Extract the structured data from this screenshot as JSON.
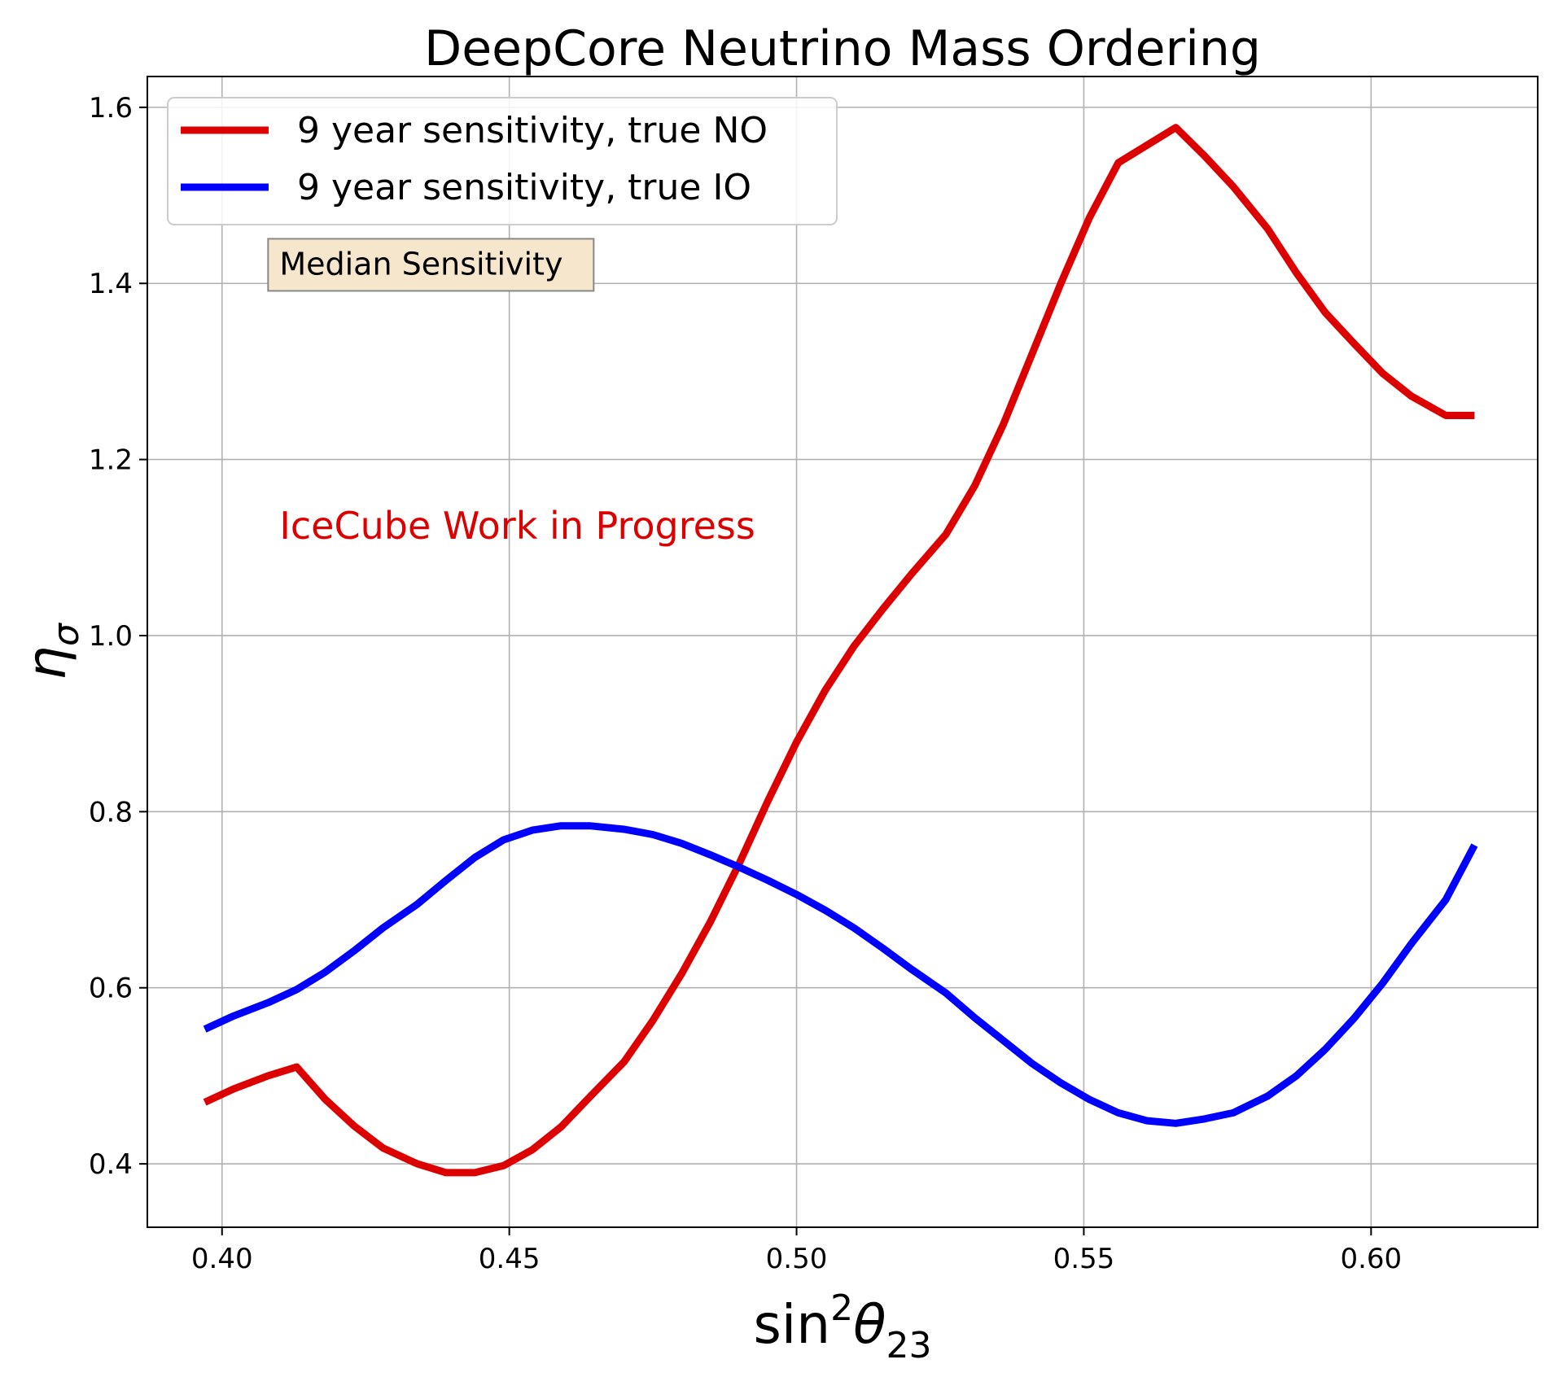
{
  "chart_data": {
    "type": "line",
    "title": "DeepCore Neutrino Mass Ordering",
    "xlabel": "sin²θ₂₃",
    "ylabel": "ησ",
    "xlim": [
      0.387,
      0.629
    ],
    "ylim": [
      0.328,
      1.635
    ],
    "xticks": [
      0.4,
      0.45,
      0.5,
      0.55,
      0.6
    ],
    "xtick_labels": [
      "0.40",
      "0.45",
      "0.50",
      "0.55",
      "0.60"
    ],
    "yticks": [
      0.4,
      0.6,
      0.8,
      1.0,
      1.2,
      1.4,
      1.6
    ],
    "ytick_labels": [
      "0.4",
      "0.6",
      "0.8",
      "1.0",
      "1.2",
      "1.4",
      "1.6"
    ],
    "grid": true,
    "legend_position": "top-left",
    "annotations": [
      {
        "text": "Median Sensitivity",
        "x": 0.41,
        "y": 1.41,
        "style": "box",
        "color": "#000000",
        "box_color": "#f5e6cc"
      },
      {
        "text": "IceCube Work in Progress",
        "x": 0.41,
        "y": 1.11,
        "style": "plain",
        "color": "#dd0000"
      }
    ],
    "series": [
      {
        "name": "9 year sensitivity, true NO",
        "color": "#dd0000",
        "x": [
          0.397,
          0.402,
          0.408,
          0.413,
          0.418,
          0.423,
          0.428,
          0.434,
          0.439,
          0.444,
          0.449,
          0.454,
          0.459,
          0.464,
          0.47,
          0.475,
          0.48,
          0.485,
          0.49,
          0.495,
          0.5,
          0.505,
          0.51,
          0.515,
          0.52,
          0.526,
          0.531,
          0.536,
          0.541,
          0.546,
          0.551,
          0.556,
          0.561,
          0.566,
          0.571,
          0.576,
          0.582,
          0.587,
          0.592,
          0.597,
          0.602,
          0.607,
          0.613,
          0.618
        ],
        "y": [
          0.47,
          0.485,
          0.5,
          0.51,
          0.473,
          0.443,
          0.418,
          0.4,
          0.39,
          0.39,
          0.398,
          0.416,
          0.442,
          0.476,
          0.516,
          0.563,
          0.616,
          0.675,
          0.741,
          0.812,
          0.879,
          0.938,
          0.988,
          1.03,
          1.07,
          1.115,
          1.17,
          1.24,
          1.32,
          1.4,
          1.475,
          1.537,
          1.557,
          1.577,
          1.545,
          1.51,
          1.462,
          1.412,
          1.367,
          1.332,
          1.298,
          1.272,
          1.25,
          1.25
        ]
      },
      {
        "name": "9 year sensitivity, true IO",
        "color": "#0000ff",
        "x": [
          0.397,
          0.402,
          0.408,
          0.413,
          0.418,
          0.423,
          0.428,
          0.434,
          0.439,
          0.444,
          0.449,
          0.454,
          0.459,
          0.464,
          0.47,
          0.475,
          0.48,
          0.485,
          0.49,
          0.495,
          0.5,
          0.505,
          0.51,
          0.515,
          0.52,
          0.526,
          0.531,
          0.536,
          0.541,
          0.546,
          0.551,
          0.556,
          0.561,
          0.566,
          0.571,
          0.576,
          0.582,
          0.587,
          0.592,
          0.597,
          0.602,
          0.607,
          0.613,
          0.618
        ],
        "y": [
          0.553,
          0.568,
          0.583,
          0.598,
          0.618,
          0.642,
          0.668,
          0.695,
          0.722,
          0.748,
          0.768,
          0.779,
          0.784,
          0.784,
          0.78,
          0.774,
          0.764,
          0.751,
          0.737,
          0.722,
          0.706,
          0.688,
          0.668,
          0.645,
          0.621,
          0.594,
          0.566,
          0.54,
          0.514,
          0.492,
          0.473,
          0.458,
          0.449,
          0.446,
          0.451,
          0.458,
          0.477,
          0.5,
          0.53,
          0.565,
          0.605,
          0.65,
          0.7,
          0.762
        ]
      }
    ]
  }
}
